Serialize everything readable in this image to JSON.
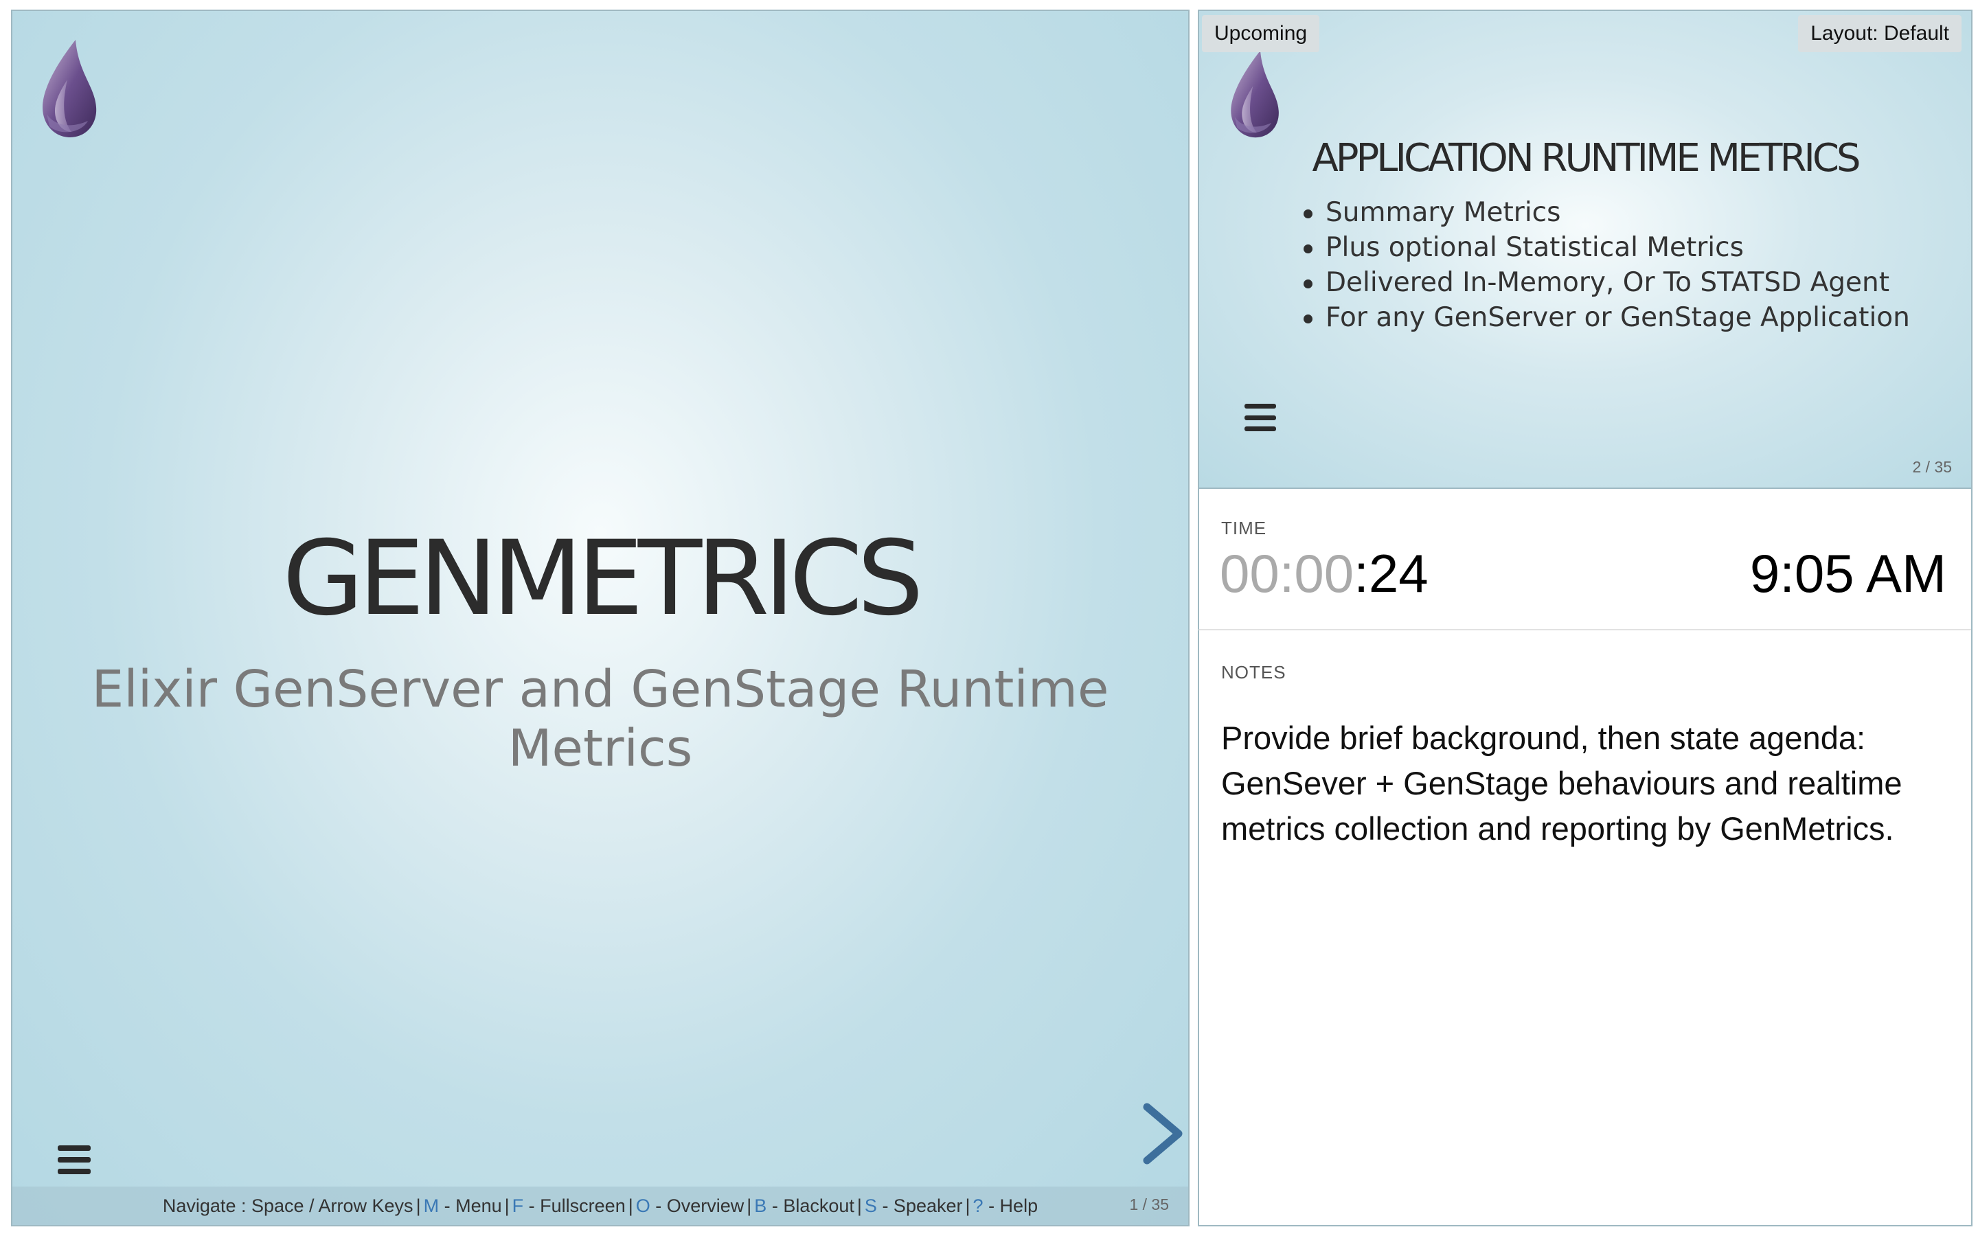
{
  "current_slide": {
    "title": "GENMETRICS",
    "subtitle": "Elixir GenServer and GenStage Runtime Metrics",
    "slide_number": "1 / 35",
    "logo_icon": "elixir-drop-logo",
    "menu_icon": "hamburger-menu-icon",
    "next_icon": "chevron-right-icon",
    "help_bar": {
      "navigate": "Navigate : Space / Arrow Keys",
      "items": [
        {
          "key": "M",
          "label": "- Menu"
        },
        {
          "key": "F",
          "label": "- Fullscreen"
        },
        {
          "key": "O",
          "label": "- Overview"
        },
        {
          "key": "B",
          "label": "- Blackout"
        },
        {
          "key": "S",
          "label": "- Speaker"
        },
        {
          "key": "?",
          "label": "- Help"
        }
      ]
    }
  },
  "upcoming_slide": {
    "label": "Upcoming",
    "layout_label": "Layout: Default",
    "title": "APPLICATION RUNTIME METRICS",
    "bullets": [
      "Summary Metrics",
      "Plus optional Statistical Metrics",
      "Delivered In-Memory, Or To STATSD Agent",
      "For any GenServer or GenStage Application"
    ],
    "slide_number": "2 / 35"
  },
  "time": {
    "label": "TIME",
    "timer_muted": "00:00",
    "timer_active": ":24",
    "clock": "9:05 AM"
  },
  "notes": {
    "label": "NOTES",
    "text": "Provide brief background, then state agenda: GenSever + GenStage behaviours and realtime metrics collection and reporting by GenMetrics."
  },
  "colors": {
    "accent_blue": "#3a78b5",
    "logo_purple": "#5a3f7e",
    "slide_bg": "#c2dfe8"
  }
}
